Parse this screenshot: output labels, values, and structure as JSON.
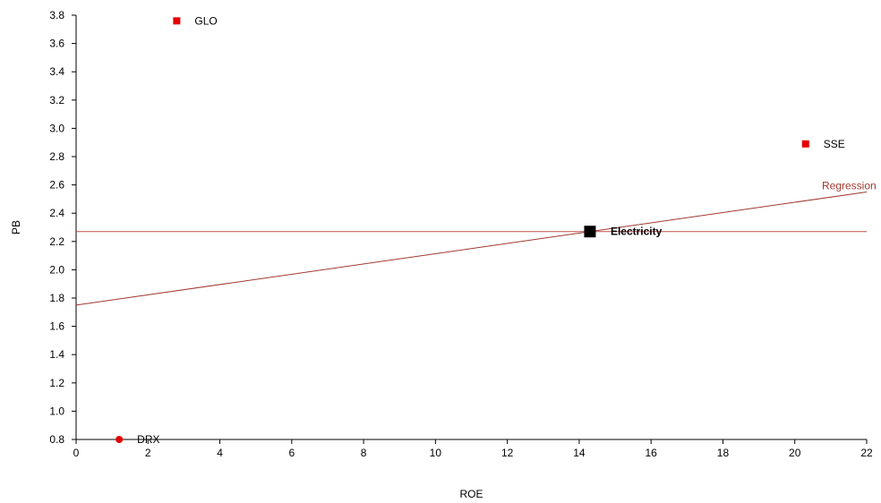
{
  "chart_data": {
    "type": "scatter",
    "xlabel": "ROE",
    "ylabel": "PB",
    "xlim": [
      0,
      22
    ],
    "ylim": [
      0.8,
      3.8
    ],
    "xticks": [
      "0",
      "2",
      "4",
      "6",
      "8",
      "10",
      "12",
      "14",
      "16",
      "18",
      "20",
      "22"
    ],
    "yticks": [
      "0.8",
      "1.0",
      "1.2",
      "1.4",
      "1.6",
      "1.8",
      "2.0",
      "2.2",
      "2.4",
      "2.6",
      "2.8",
      "3.0",
      "3.2",
      "3.4",
      "3.6",
      "3.8"
    ],
    "grid": false,
    "points": [
      {
        "label": "GLO",
        "x": 2.8,
        "y": 3.76,
        "marker": "square",
        "color": "#e60000"
      },
      {
        "label": "SSE",
        "x": 20.3,
        "y": 2.89,
        "marker": "square",
        "color": "#e60000"
      },
      {
        "label": "DRX",
        "x": 1.2,
        "y": 0.8,
        "marker": "circle",
        "color": "#e60000"
      },
      {
        "label": "Electricity",
        "x": 14.3,
        "y": 2.27,
        "marker": "square-large",
        "color": "#000000",
        "bold": true
      }
    ],
    "regression": {
      "label": "Regression",
      "x": [
        0,
        22
      ],
      "y": [
        1.75,
        2.55
      ],
      "color": "#a0392f"
    },
    "reference_line": {
      "y": 2.27,
      "color": "#c0504d"
    }
  }
}
